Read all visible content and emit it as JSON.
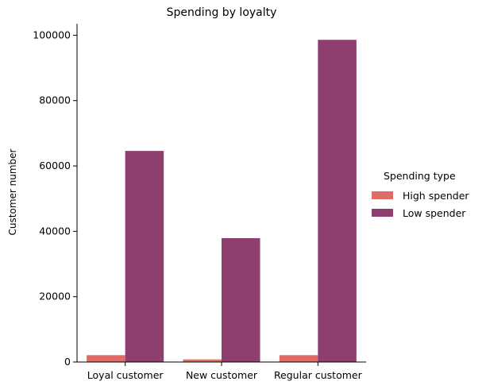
{
  "chart_data": {
    "type": "bar",
    "title": "Spending by loyalty",
    "xlabel": "",
    "ylabel": "Customer number",
    "categories": [
      "Loyal customer",
      "New customer",
      "Regular customer"
    ],
    "series": [
      {
        "name": "High spender",
        "color": "#e06c68",
        "values": [
          2100,
          800,
          2100
        ]
      },
      {
        "name": "Low spender",
        "color": "#8f3f6f",
        "values": [
          64600,
          37900,
          98600
        ]
      }
    ],
    "ylim": [
      0,
      103500
    ],
    "yticks": [
      0,
      20000,
      40000,
      60000,
      80000,
      100000
    ],
    "legend": {
      "title": "Spending type",
      "placement": "right"
    },
    "grid": false
  }
}
